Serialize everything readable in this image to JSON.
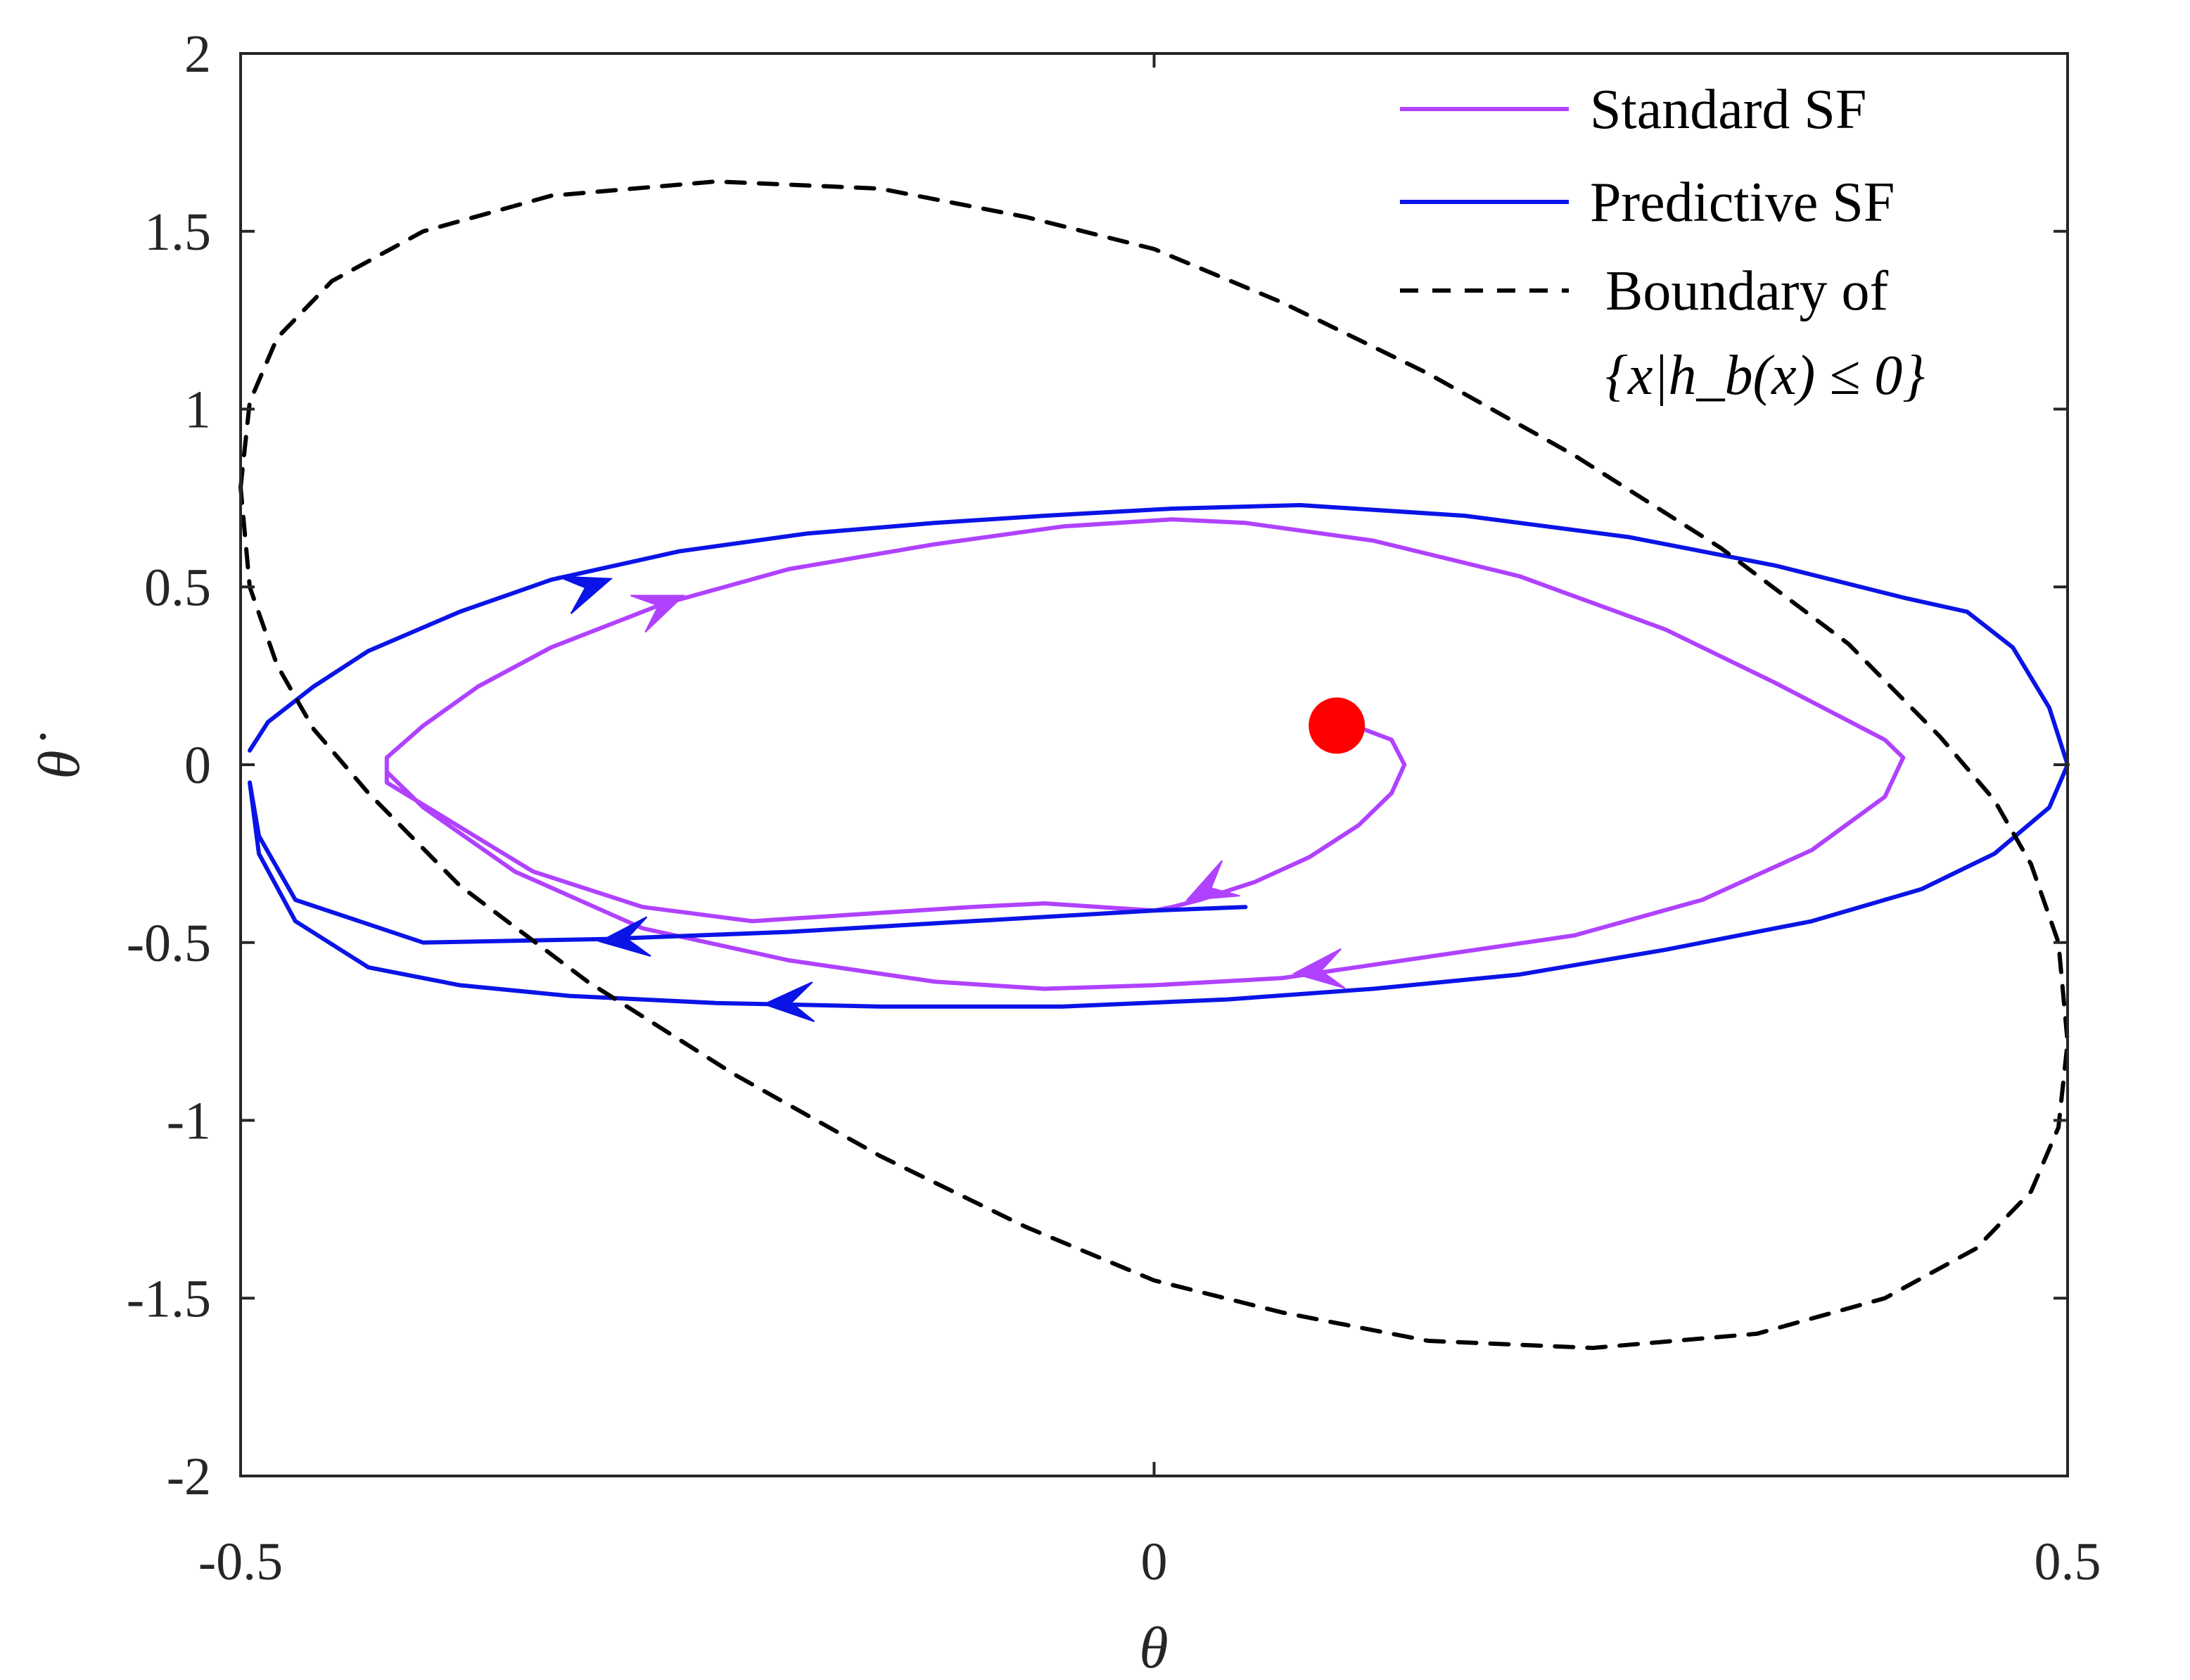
{
  "chart_data": {
    "type": "line",
    "title": "",
    "xlabel": "θ",
    "ylabel": "θ̇",
    "xlim": [
      -0.5,
      0.5
    ],
    "ylim": [
      -2,
      2
    ],
    "x_ticks": [
      -0.5,
      0,
      0.5
    ],
    "x_tick_labels": [
      "-0.5",
      "0",
      "0.5"
    ],
    "y_ticks": [
      2,
      1.5,
      1,
      0.5,
      0,
      -0.5,
      -1,
      -1.5,
      -2
    ],
    "y_tick_labels": [
      "2",
      "1.5",
      "1",
      "0.5",
      "0",
      "-0.5",
      "-1",
      "-1.5",
      "-2"
    ],
    "grid": false,
    "legend_position": "top-right",
    "legend": [
      {
        "label": "Standard SF",
        "style": "solid",
        "color": "#b042ff"
      },
      {
        "label": "Predictive SF",
        "style": "solid",
        "color": "#0a14e6"
      },
      {
        "label": "Boundary of",
        "label_line2": "{x|h_b(x) ≤ 0}",
        "style": "dashed",
        "color": "#000000"
      }
    ],
    "series": [
      {
        "name": "Standard SF",
        "color": "#b042ff",
        "x": [
          0.098,
          0.112,
          0.13,
          0.137,
          0.13,
          0.112,
          0.085,
          0.055,
          0.025,
          0.01,
          0.0,
          -0.03,
          -0.06,
          -0.1,
          -0.16,
          -0.22,
          -0.28,
          -0.34,
          -0.388,
          -0.42,
          -0.42,
          -0.4,
          -0.37,
          -0.33,
          -0.27,
          -0.2,
          -0.12,
          -0.05,
          0.01,
          0.05,
          0.12,
          0.2,
          0.28,
          0.34,
          0.4,
          0.41,
          0.4,
          0.36,
          0.3,
          0.23,
          0.15,
          0.07,
          0.0,
          -0.06,
          -0.12,
          -0.2,
          -0.28,
          -0.35,
          -0.4,
          -0.42
        ],
        "y": [
          0.11,
          0.105,
          0.07,
          0.0,
          -0.08,
          -0.17,
          -0.26,
          -0.33,
          -0.38,
          -0.4,
          -0.41,
          -0.4,
          -0.39,
          -0.4,
          -0.42,
          -0.44,
          -0.4,
          -0.3,
          -0.15,
          -0.05,
          0.02,
          0.11,
          0.22,
          0.33,
          0.45,
          0.55,
          0.62,
          0.67,
          0.69,
          0.68,
          0.63,
          0.53,
          0.38,
          0.23,
          0.07,
          0.02,
          -0.09,
          -0.24,
          -0.38,
          -0.48,
          -0.54,
          -0.6,
          -0.62,
          -0.63,
          -0.61,
          -0.55,
          -0.46,
          -0.3,
          -0.12,
          -0.02
        ]
      },
      {
        "name": "Predictive SF",
        "color": "#0a14e6",
        "x": [
          -0.495,
          -0.485,
          -0.46,
          -0.43,
          -0.38,
          -0.33,
          -0.26,
          -0.19,
          -0.12,
          -0.06,
          0.01,
          0.08,
          0.17,
          0.26,
          0.34,
          0.41,
          0.445,
          0.47,
          0.49,
          0.5,
          0.49,
          0.46,
          0.42,
          0.36,
          0.28,
          0.2,
          0.12,
          0.04,
          -0.05,
          -0.15,
          -0.24,
          -0.32,
          -0.38,
          -0.43,
          -0.47,
          -0.49,
          -0.495,
          -0.49,
          -0.47,
          -0.4,
          -0.3,
          -0.2,
          -0.1,
          0.0,
          0.05
        ],
        "y": [
          0.04,
          0.12,
          0.22,
          0.32,
          0.43,
          0.52,
          0.6,
          0.65,
          0.68,
          0.7,
          0.72,
          0.73,
          0.7,
          0.64,
          0.56,
          0.47,
          0.43,
          0.33,
          0.16,
          0.0,
          -0.12,
          -0.25,
          -0.35,
          -0.44,
          -0.52,
          -0.59,
          -0.63,
          -0.66,
          -0.68,
          -0.68,
          -0.67,
          -0.65,
          -0.62,
          -0.57,
          -0.44,
          -0.25,
          -0.05,
          -0.2,
          -0.38,
          -0.5,
          -0.49,
          -0.47,
          -0.44,
          -0.41,
          -0.4
        ]
      },
      {
        "name": "Boundary of {x|h_b(x) ≤ 0}",
        "color": "#000000",
        "x": [
          -0.5,
          -0.495,
          -0.48,
          -0.45,
          -0.4,
          -0.33,
          -0.24,
          -0.15,
          -0.07,
          0.0,
          0.07,
          0.15,
          0.23,
          0.31,
          0.38,
          0.43,
          0.46,
          0.48,
          0.495,
          0.5,
          0.495,
          0.48,
          0.45,
          0.4,
          0.33,
          0.24,
          0.15,
          0.07,
          0.0,
          -0.07,
          -0.15,
          -0.23,
          -0.31,
          -0.38,
          -0.43,
          -0.46,
          -0.48,
          -0.495,
          -0.5
        ],
        "y": [
          0.78,
          1.02,
          1.2,
          1.36,
          1.5,
          1.6,
          1.64,
          1.62,
          1.54,
          1.45,
          1.3,
          1.1,
          0.87,
          0.61,
          0.34,
          0.08,
          -0.1,
          -0.28,
          -0.5,
          -0.78,
          -1.02,
          -1.2,
          -1.36,
          -1.5,
          -1.6,
          -1.64,
          -1.62,
          -1.54,
          -1.45,
          -1.3,
          -1.1,
          -0.87,
          -0.61,
          -0.34,
          -0.08,
          0.1,
          0.28,
          0.5,
          0.78
        ]
      }
    ],
    "arrows": [
      {
        "series": "Predictive SF",
        "x": -0.31,
        "y": 0.5,
        "dir": [
          1,
          0.35
        ]
      },
      {
        "series": "Predictive SF",
        "x": -0.29,
        "y": -0.49,
        "dir": [
          -1,
          -0.1
        ]
      },
      {
        "series": "Predictive SF",
        "x": -0.2,
        "y": -0.67,
        "dir": [
          -1,
          -0.05
        ]
      },
      {
        "series": "Standard SF",
        "x": -0.27,
        "y": 0.45,
        "dir": [
          1,
          0.4
        ]
      },
      {
        "series": "Standard SF",
        "x": 0.03,
        "y": -0.35,
        "dir": [
          -1,
          -0.5
        ]
      },
      {
        "series": "Standard SF",
        "x": 0.09,
        "y": -0.58,
        "dir": [
          -1,
          -0.1
        ]
      }
    ],
    "markers": [
      {
        "name": "start-point",
        "x": 0.1,
        "y": 0.11,
        "color": "#ff0000"
      }
    ]
  }
}
